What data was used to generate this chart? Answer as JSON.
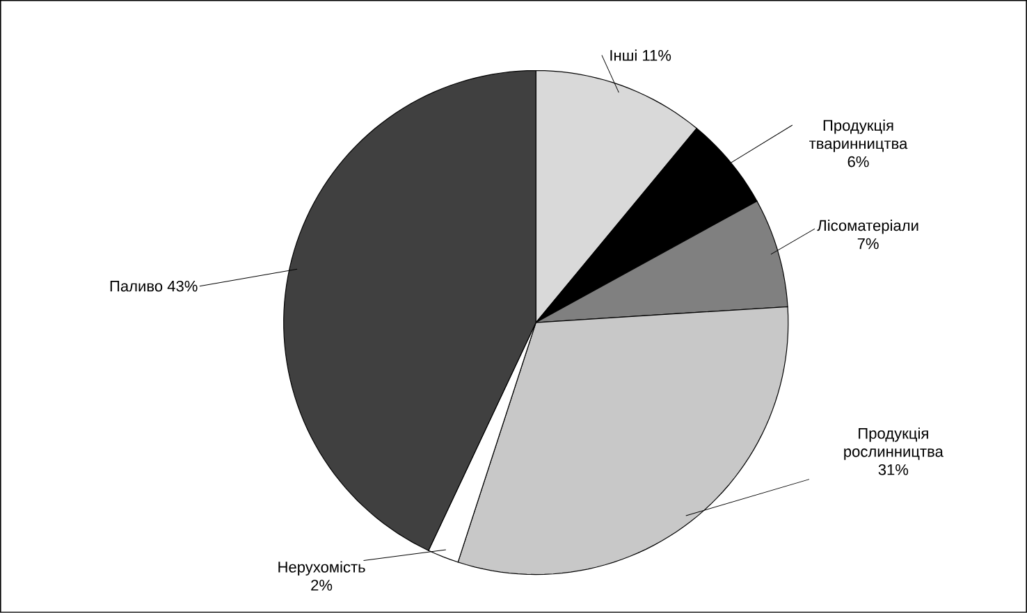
{
  "chart_data": {
    "type": "pie",
    "categories": [
      "Інші",
      "Продукція тваринництва",
      "Лісоматеріали",
      "Продукція рослинництва",
      "Нерухомість",
      "Паливо"
    ],
    "values": [
      11,
      6,
      7,
      31,
      2,
      43
    ],
    "value_labels": [
      "11%",
      "6%",
      "7%",
      "31%",
      "2%",
      "43%"
    ],
    "colors": [
      "#d9d9d9",
      "#000000",
      "#808080",
      "#c8c8c8",
      "#ffffff",
      "#404040"
    ]
  }
}
